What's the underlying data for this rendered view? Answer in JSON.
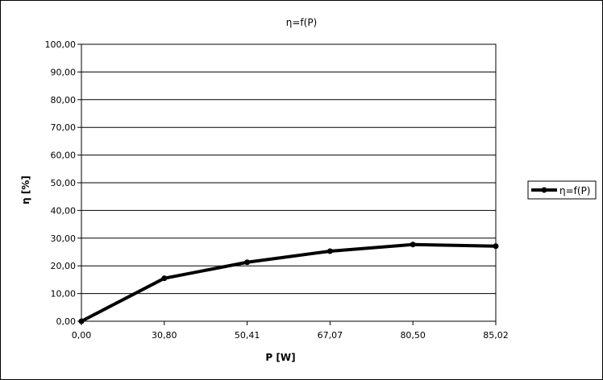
{
  "chart_data": {
    "type": "line",
    "title": "η=f(P)",
    "xlabel": "P [W]",
    "ylabel": "η [%]",
    "categories": [
      "0,00",
      "30,80",
      "50,41",
      "67,07",
      "80,50",
      "85,02"
    ],
    "series": [
      {
        "name": "η=f(P)",
        "values": [
          0.0,
          15.5,
          21.3,
          25.3,
          27.7,
          27.1
        ]
      }
    ],
    "yticks": [
      "0,00",
      "10,00",
      "20,00",
      "30,00",
      "40,00",
      "50,00",
      "60,00",
      "70,00",
      "80,00",
      "90,00",
      "100,00"
    ],
    "ylim": [
      0,
      100
    ],
    "grid": "horizontal",
    "legend_position": "right",
    "colors": {
      "series": "#000000",
      "grid": "#000000",
      "background": "#ffffff"
    }
  }
}
